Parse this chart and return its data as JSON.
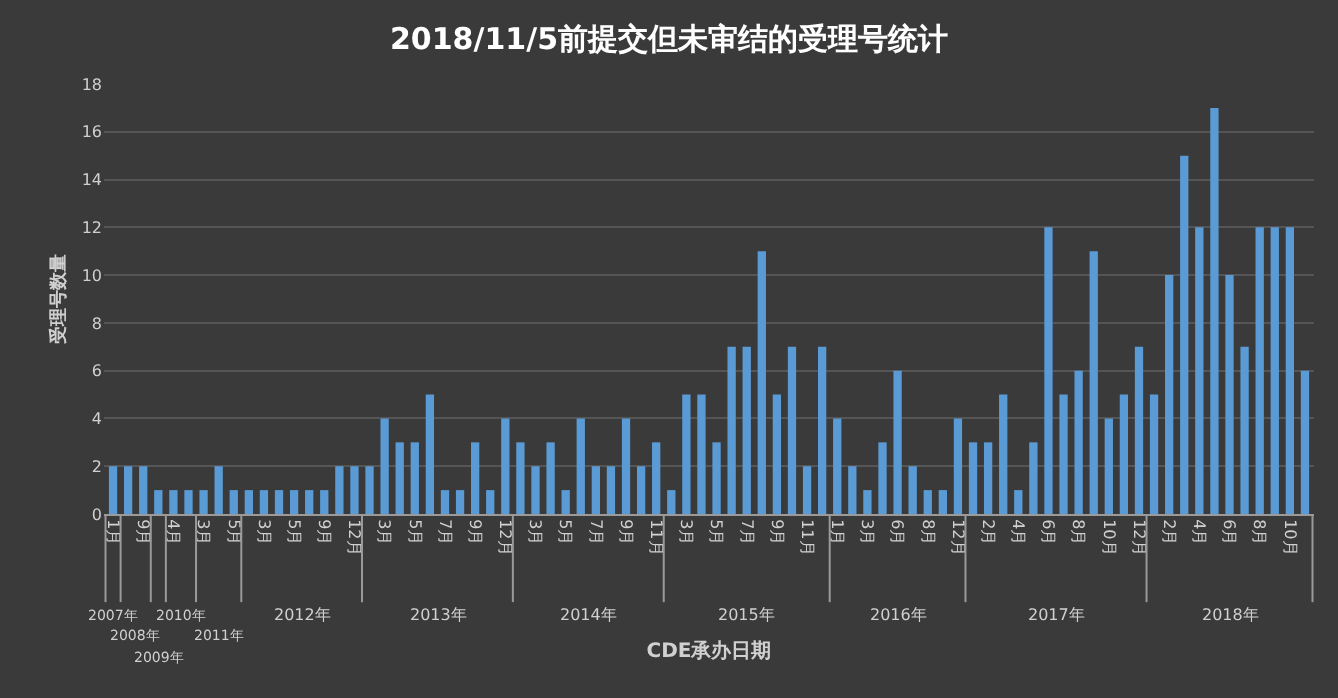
{
  "chart_data": {
    "type": "bar",
    "title": "2018/11/5前提交但未审结的受理号统计",
    "xlabel": "CDE承办日期",
    "ylabel": "受理号数量",
    "categories": [
      "1月",
      null,
      "9月",
      null,
      "4月",
      null,
      "3月",
      null,
      "5月",
      null,
      "3月",
      null,
      "5月",
      null,
      "9月",
      null,
      "12月",
      null,
      "3月",
      null,
      "5月",
      null,
      "7月",
      null,
      "9月",
      null,
      "12月",
      null,
      "3月",
      null,
      "5月",
      null,
      "7月",
      null,
      "9月",
      null,
      "11月",
      null,
      "3月",
      null,
      "5月",
      null,
      "7月",
      null,
      "9月",
      null,
      "11月",
      null,
      "1月",
      null,
      "3月",
      null,
      "6月",
      null,
      "8月",
      null,
      "12月",
      null,
      "2月",
      null,
      "4月",
      null,
      "6月",
      null,
      "8月",
      null,
      "10月",
      null,
      "12月",
      null,
      "2月",
      null,
      "4月",
      null,
      "6月",
      null,
      "8月",
      null,
      "10月",
      null
    ],
    "values": [
      2,
      2,
      2,
      1,
      1,
      1,
      1,
      2,
      1,
      1,
      1,
      1,
      1,
      1,
      1,
      2,
      2,
      2,
      4,
      3,
      3,
      5,
      1,
      1,
      3,
      1,
      4,
      3,
      2,
      3,
      1,
      4,
      2,
      2,
      4,
      2,
      3,
      1,
      5,
      5,
      3,
      7,
      7,
      11,
      5,
      7,
      2,
      7,
      4,
      2,
      1,
      3,
      6,
      2,
      1,
      1,
      4,
      3,
      3,
      5,
      1,
      3,
      12,
      5,
      6,
      11,
      4,
      5,
      7,
      5,
      10,
      15,
      12,
      17,
      10,
      7,
      12,
      12,
      12,
      6
    ],
    "color": "#5b9bd5",
    "ylim": [
      0,
      18
    ],
    "yticks": [
      0,
      2,
      4,
      6,
      8,
      10,
      12,
      14,
      16,
      18
    ],
    "grid": "y",
    "annotations": [
      "2007年",
      "2008年",
      "2009年",
      "2010年",
      "2011年",
      "2012年",
      "2013年",
      "2014年",
      "2015年",
      "2016年",
      "2017年",
      "2018年"
    ]
  }
}
